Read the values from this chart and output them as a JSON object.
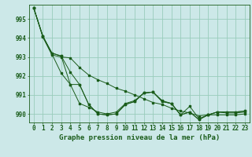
{
  "background_color": "#cce8e8",
  "plot_bg_color": "#cce8e8",
  "grid_color": "#99ccbb",
  "line_color": "#1a5c1a",
  "xlabel": "Graphe pression niveau de la mer (hPa)",
  "xlabel_fontsize": 6.5,
  "tick_fontsize": 5.5,
  "xlim": [
    -0.5,
    23.5
  ],
  "ylim": [
    989.55,
    995.75
  ],
  "yticks": [
    990,
    991,
    992,
    993,
    994,
    995
  ],
  "xticks": [
    0,
    1,
    2,
    3,
    4,
    5,
    6,
    7,
    8,
    9,
    10,
    11,
    12,
    13,
    14,
    15,
    16,
    17,
    18,
    19,
    20,
    21,
    22,
    23
  ],
  "line1": [
    995.6,
    994.1,
    993.2,
    993.05,
    992.2,
    991.55,
    990.5,
    990.0,
    989.95,
    990.0,
    990.5,
    990.65,
    991.1,
    991.15,
    990.65,
    990.55,
    989.95,
    990.1,
    989.7,
    989.95,
    990.1,
    990.1,
    990.1,
    990.15
  ],
  "line2": [
    995.6,
    994.1,
    993.2,
    993.05,
    991.55,
    991.55,
    990.5,
    990.0,
    989.95,
    990.0,
    990.5,
    990.65,
    991.1,
    991.15,
    990.65,
    990.55,
    989.95,
    990.1,
    989.7,
    989.95,
    990.1,
    990.1,
    990.1,
    990.15
  ],
  "line3": [
    995.6,
    994.1,
    993.15,
    992.15,
    991.55,
    990.55,
    990.35,
    990.1,
    990.0,
    990.1,
    990.55,
    990.7,
    991.1,
    991.15,
    990.7,
    990.55,
    989.95,
    990.4,
    989.75,
    989.95,
    990.1,
    990.05,
    990.05,
    990.1
  ],
  "line4": [
    995.6,
    994.05,
    993.1,
    993.0,
    992.95,
    992.45,
    992.05,
    991.8,
    991.6,
    991.35,
    991.2,
    991.0,
    990.8,
    990.6,
    990.5,
    990.3,
    990.15,
    990.05,
    989.9,
    989.95,
    989.95,
    989.95,
    989.95,
    990.0
  ]
}
